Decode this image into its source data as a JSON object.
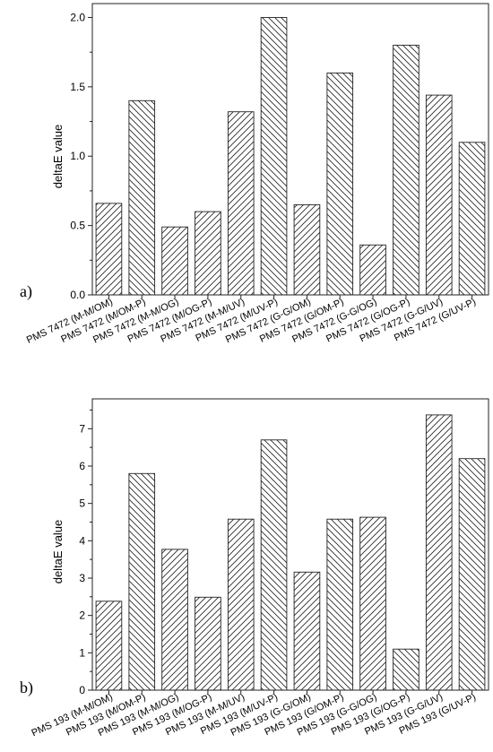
{
  "chart_data": [
    {
      "type": "bar",
      "panel_label": "a)",
      "ylabel": "deltaE value",
      "ylim": [
        0,
        2.1
      ],
      "yticks": [
        "0.0",
        "0.5",
        "1.0",
        "1.5",
        "2.0"
      ],
      "grid": false,
      "categories": [
        "PMS 7472 (M-M/OM)",
        "PMS 7472 (M/OM-P)",
        "PMS 7472 (M-M/OG)",
        "PMS 7472 (M/OG-P)",
        "PMS 7472 (M-M/UV)",
        "PMS 7472 (M/UV-P)",
        "PMS 7472 (G-G/OM)",
        "PMS 7472 (G/OM-P)",
        "PMS 7472 (G-G/OG)",
        "PMS 7472 (G/OG-P)",
        "PMS 7472 (G-G/UV)",
        "PMS 7472 (G/UV-P)"
      ],
      "values": [
        0.66,
        1.4,
        0.49,
        0.6,
        1.32,
        2.0,
        0.65,
        1.6,
        0.36,
        1.8,
        1.44,
        1.1
      ],
      "patterns": [
        "fwd",
        "back",
        "fwd",
        "fwd",
        "fwd",
        "back",
        "fwd",
        "back",
        "fwd",
        "back",
        "fwd",
        "back"
      ]
    },
    {
      "type": "bar",
      "panel_label": "b)",
      "ylabel": "deltaE value",
      "ylim": [
        0,
        7.8
      ],
      "yticks": [
        "0",
        "1",
        "2",
        "3",
        "4",
        "5",
        "6",
        "7"
      ],
      "grid": false,
      "categories": [
        "PMS 193 (M-M/OM)",
        "PMS 193 (M/OM-P)",
        "PMS 193 (M-M/OG)",
        "PMS 193 (M/OG-P)",
        "PMS 193 (M-M/UV)",
        "PMS 193 (M/UV-P)",
        "PMS 193 (G-G/OM)",
        "PMS 193 (G/OM-P)",
        "PMS 193 (G-G/OG)",
        "PMS 193 (G/OG-P)",
        "PMS 193 (G-G/UV)",
        "PMS 193 (G/UV-P)"
      ],
      "values": [
        2.38,
        5.8,
        3.77,
        2.49,
        4.58,
        6.7,
        3.16,
        4.58,
        4.63,
        1.1,
        7.37,
        6.2
      ],
      "patterns": [
        "fwd",
        "back",
        "fwd",
        "fwd",
        "fwd",
        "back",
        "fwd",
        "back",
        "fwd",
        "back",
        "fwd",
        "back"
      ]
    }
  ]
}
